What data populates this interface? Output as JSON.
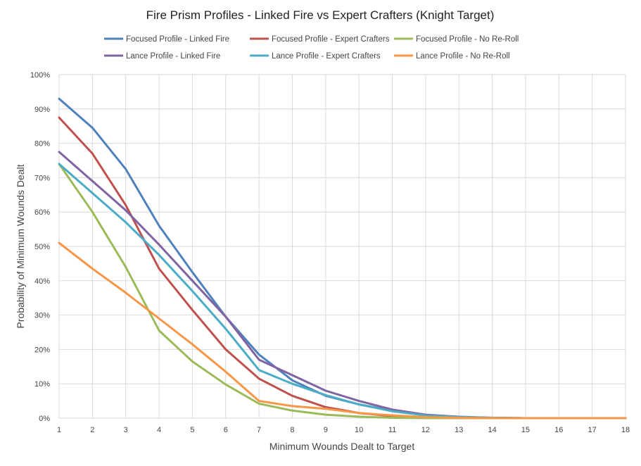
{
  "chart_data": {
    "type": "line",
    "title": "Fire Prism Profiles - Linked Fire vs Expert Crafters (Knight Target)",
    "xlabel": "Minimum Wounds Dealt  to Target",
    "ylabel": "Probability of Minimum Wounds Dealt",
    "x": [
      1,
      2,
      3,
      4,
      5,
      6,
      7,
      8,
      9,
      10,
      11,
      12,
      13,
      14,
      15,
      16,
      17,
      18
    ],
    "xlim": [
      1,
      18
    ],
    "ylim": [
      0,
      100
    ],
    "y_ticks": [
      "0%",
      "10%",
      "20%",
      "30%",
      "40%",
      "50%",
      "60%",
      "70%",
      "80%",
      "90%",
      "100%"
    ],
    "grid": true,
    "legend_position": "top",
    "series": [
      {
        "name": "Focused Profile - Linked Fire",
        "color": "#4f81bd",
        "values": [
          93,
          84.5,
          72.5,
          56,
          42.5,
          29.5,
          18.5,
          11,
          6.5,
          4,
          2.2,
          0.8,
          0.3,
          0.1,
          0,
          0,
          0,
          0
        ]
      },
      {
        "name": "Focused Profile - Expert Crafters",
        "color": "#c0504d",
        "values": [
          87.5,
          77,
          62,
          43.5,
          31.5,
          20,
          11.5,
          6.5,
          3.2,
          1.5,
          0.6,
          0.2,
          0.1,
          0,
          0,
          0,
          0,
          0
        ]
      },
      {
        "name": "Focused Profile - No Re-Roll",
        "color": "#9bbb59",
        "values": [
          74,
          60,
          44,
          25.5,
          16.5,
          9.8,
          4.2,
          2.2,
          1,
          0.4,
          0.1,
          0,
          0,
          0,
          0,
          0,
          0,
          0
        ]
      },
      {
        "name": "Lance Profile - Linked Fire",
        "color": "#8064a2",
        "values": [
          77.5,
          69,
          60.5,
          50.5,
          40,
          29.5,
          17,
          12.5,
          8,
          5,
          2.5,
          1,
          0.4,
          0.1,
          0,
          0,
          0,
          0
        ]
      },
      {
        "name": "Lance Profile - Expert Crafters",
        "color": "#4bacc6",
        "values": [
          74,
          65.5,
          57,
          47.5,
          37,
          26,
          14,
          10,
          6.7,
          4,
          2,
          0.8,
          0.3,
          0.1,
          0,
          0,
          0,
          0
        ]
      },
      {
        "name": "Lance Profile - No Re-Roll",
        "color": "#f79646",
        "values": [
          51,
          43.5,
          36.5,
          29,
          21.5,
          13.5,
          5,
          3.5,
          2.7,
          1.5,
          0.8,
          0.3,
          0.1,
          0,
          0,
          0,
          0,
          0
        ]
      }
    ]
  }
}
